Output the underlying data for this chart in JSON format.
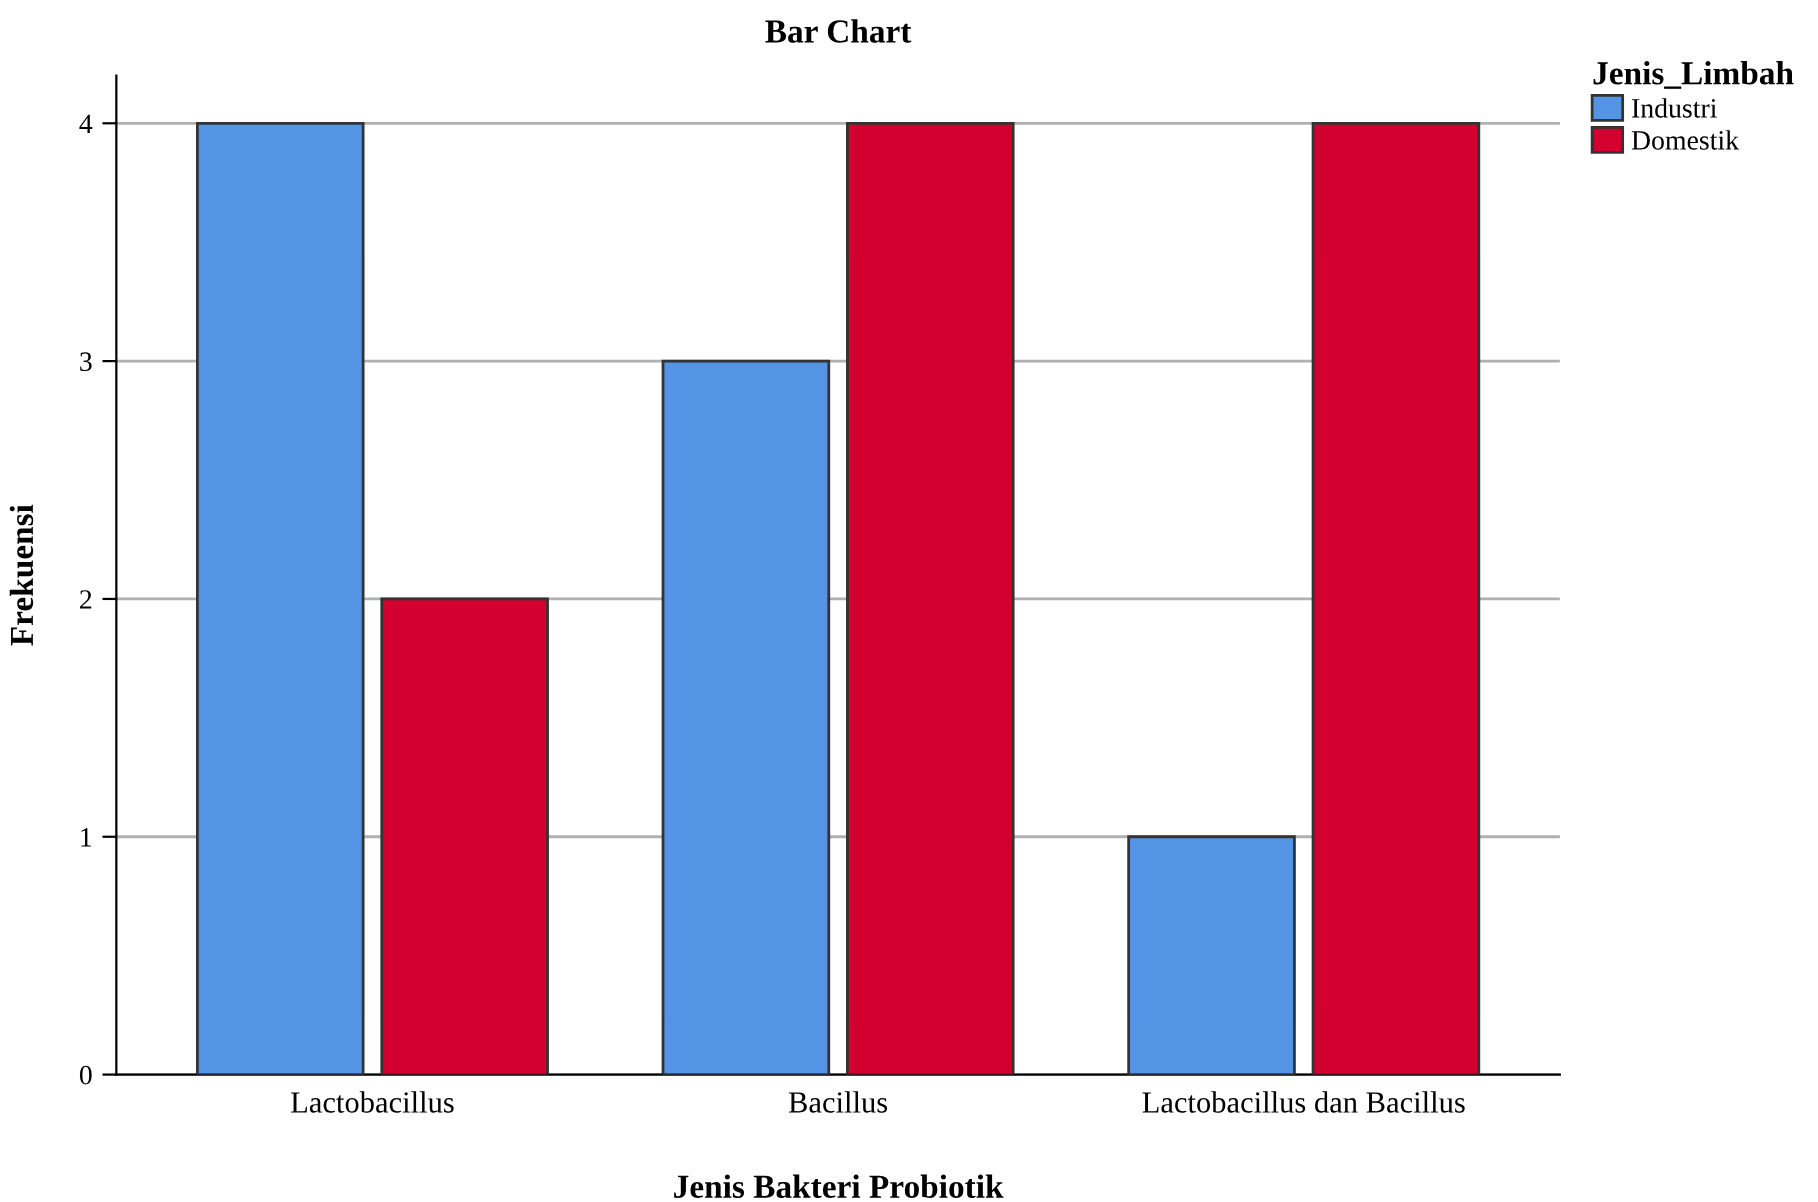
{
  "chart_data": {
    "type": "bar",
    "title": "Bar Chart",
    "xlabel": "Jenis Bakteri Probiotik",
    "ylabel": "Frekuensi",
    "legend_title": "Jenis_Limbah",
    "categories": [
      "Lactobacillus",
      "Bacillus",
      "Lactobacillus dan Bacillus"
    ],
    "series": [
      {
        "name": "Industri",
        "color": "#5494e4",
        "values": [
          4,
          3,
          1
        ]
      },
      {
        "name": "Domestik",
        "color": "#d3002f",
        "values": [
          2,
          4,
          4
        ]
      }
    ],
    "ylim": [
      0,
      4.2
    ],
    "yticks": [
      0,
      1,
      2,
      3,
      4
    ],
    "grid": "y",
    "legend": "top right"
  }
}
